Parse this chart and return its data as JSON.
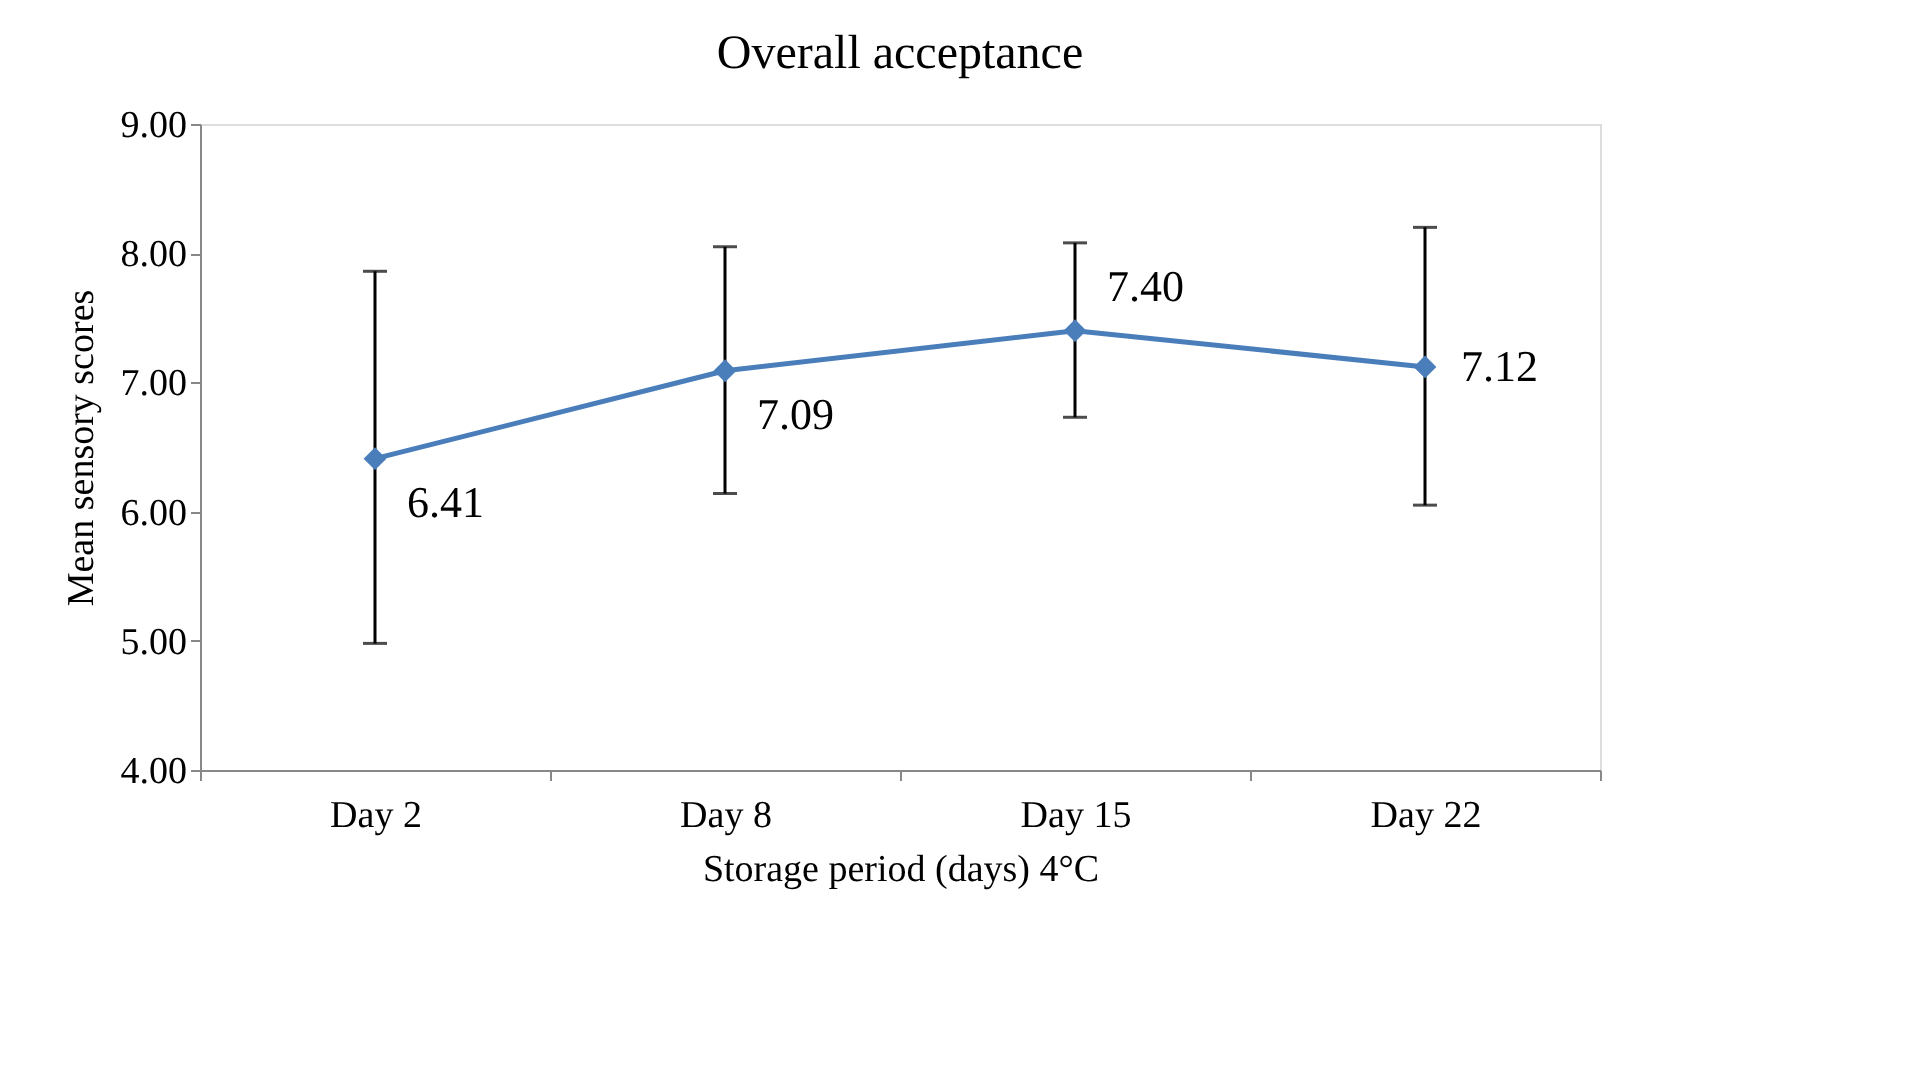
{
  "chart_data": {
    "type": "line",
    "title": "Overall acceptance",
    "xlabel": "Storage period (days) 4°C",
    "ylabel": "Mean sensory scores",
    "categories": [
      "Day 2",
      "Day 8",
      "Day 15",
      "Day 22"
    ],
    "series": [
      {
        "color": "#4a7ebb",
        "values": [
          6.41,
          7.09,
          7.4,
          7.12
        ],
        "errors": [
          [
            4.98,
            7.86
          ],
          [
            6.14,
            8.05
          ],
          [
            6.73,
            8.08
          ],
          [
            6.05,
            8.2
          ]
        ]
      }
    ],
    "ylim": [
      4,
      9
    ],
    "yticks": [
      {
        "value": 4,
        "label": "4.00"
      },
      {
        "value": 5,
        "label": "5.00"
      },
      {
        "value": 6,
        "label": "6.00"
      },
      {
        "value": 7,
        "label": "7.00"
      },
      {
        "value": 8,
        "label": "8.00"
      },
      {
        "value": 9,
        "label": "9.00"
      }
    ],
    "value_labels": [
      "6.41",
      "7.09",
      "7.40",
      "7.12"
    ],
    "marker": "diamond",
    "line_style": "solid",
    "grid": false
  }
}
